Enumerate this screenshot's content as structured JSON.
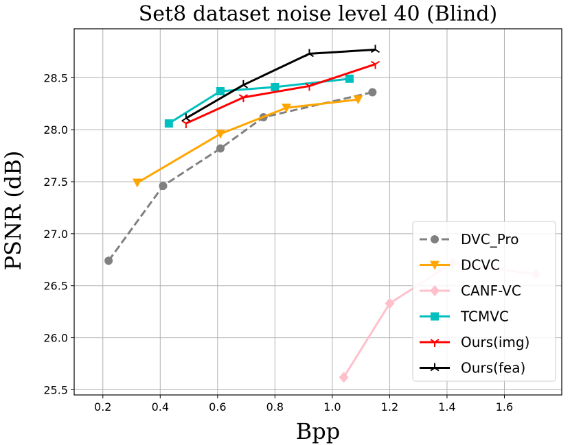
{
  "chart_data": {
    "type": "line",
    "title": "Set8 dataset noise level 40 (Blind)",
    "xlabel": "Bpp",
    "ylabel": "PSNR (dB)",
    "xlim": [
      0.1,
      1.8
    ],
    "ylim": [
      25.45,
      28.97
    ],
    "xticks": [
      0.2,
      0.4,
      0.6,
      0.8,
      1.0,
      1.2,
      1.4,
      1.6
    ],
    "xtick_labels": [
      "0.2",
      "0.4",
      "0.6",
      "0.8",
      "1.0",
      "1.2",
      "1.4",
      "1.6"
    ],
    "yticks": [
      25.5,
      26.0,
      26.5,
      27.0,
      27.5,
      28.0,
      28.5
    ],
    "ytick_labels": [
      "25.5",
      "26.0",
      "26.5",
      "27.0",
      "27.5",
      "28.0",
      "28.5"
    ],
    "grid": true,
    "legend_position": "bottom-right",
    "series": [
      {
        "name": "DVC_Pro",
        "color": "#808080",
        "dashed": true,
        "marker": "circle",
        "x": [
          0.22,
          0.41,
          0.61,
          0.76,
          1.14
        ],
        "y": [
          26.74,
          27.46,
          27.82,
          28.12,
          28.36
        ]
      },
      {
        "name": "DCVC",
        "color": "#ffa500",
        "dashed": false,
        "marker": "triangle-down",
        "x": [
          0.32,
          0.61,
          0.84,
          1.09
        ],
        "y": [
          27.49,
          27.96,
          28.21,
          28.29
        ]
      },
      {
        "name": "CANF-VC",
        "color": "#ffc0cb",
        "dashed": false,
        "marker": "diamond",
        "x": [
          1.04,
          1.2,
          1.42,
          1.71
        ],
        "y": [
          25.62,
          26.33,
          26.72,
          26.61
        ]
      },
      {
        "name": "TCMVC",
        "color": "#00bfbf",
        "dashed": false,
        "marker": "square",
        "x": [
          0.43,
          0.61,
          0.8,
          1.06
        ],
        "y": [
          28.06,
          28.37,
          28.41,
          28.49
        ]
      },
      {
        "name": "Ours(img)",
        "color": "#ff0000",
        "dashed": false,
        "marker": "tri-down",
        "x": [
          0.49,
          0.69,
          0.92,
          1.15
        ],
        "y": [
          28.06,
          28.31,
          28.42,
          28.63
        ]
      },
      {
        "name": "Ours(fea)",
        "color": "#000000",
        "dashed": false,
        "marker": "tri-up",
        "x": [
          0.49,
          0.69,
          0.92,
          1.15
        ],
        "y": [
          28.11,
          28.43,
          28.73,
          28.77
        ]
      }
    ]
  }
}
